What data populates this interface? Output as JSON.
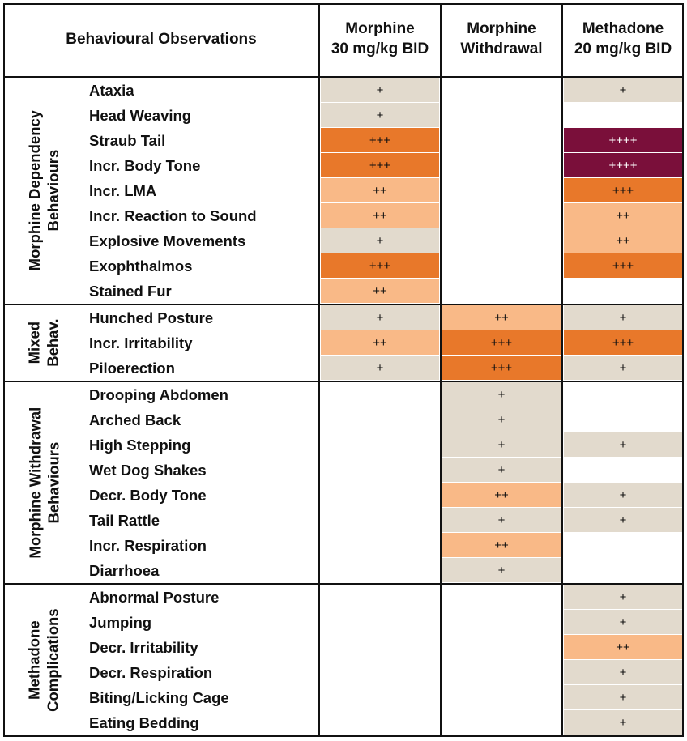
{
  "chart_data": {
    "type": "table",
    "corner_header": "Behavioural Observations",
    "columns": [
      {
        "label": "Morphine\n30 mg/kg BID"
      },
      {
        "label": "Morphine\nWithdrawal"
      },
      {
        "label": "Methadone\n20 mg/kg BID"
      }
    ],
    "legend_colors": {
      "+": "#e2dacd",
      "++": "#f9b987",
      "+++": "#e8782a",
      "++++": "#7a0f3a"
    },
    "groups": [
      {
        "label": "Morphine Dependency\nBehaviours",
        "rows": [
          {
            "label": "Ataxia",
            "values": [
              "+",
              "",
              "+"
            ]
          },
          {
            "label": "Head Weaving",
            "values": [
              "+",
              "",
              ""
            ]
          },
          {
            "label": "Straub Tail",
            "values": [
              "+++",
              "",
              "++++"
            ]
          },
          {
            "label": "Incr. Body Tone",
            "values": [
              "+++",
              "",
              "++++"
            ]
          },
          {
            "label": "Incr. LMA",
            "values": [
              "++",
              "",
              "+++"
            ]
          },
          {
            "label": "Incr. Reaction to Sound",
            "values": [
              "++",
              "",
              "++"
            ]
          },
          {
            "label": "Explosive Movements",
            "values": [
              "+",
              "",
              "++"
            ]
          },
          {
            "label": "Exophthalmos",
            "values": [
              "+++",
              "",
              "+++"
            ]
          },
          {
            "label": "Stained Fur",
            "values": [
              "++",
              "",
              ""
            ]
          }
        ]
      },
      {
        "label": "Mixed\nBehav.",
        "rows": [
          {
            "label": "Hunched Posture",
            "values": [
              "+",
              "++",
              "+"
            ]
          },
          {
            "label": "Incr. Irritability",
            "values": [
              "++",
              "+++",
              "+++"
            ]
          },
          {
            "label": "Piloerection",
            "values": [
              "+",
              "+++",
              "+"
            ]
          }
        ]
      },
      {
        "label": "Morphine Withdrawal\nBehaviours",
        "rows": [
          {
            "label": "Drooping Abdomen",
            "values": [
              "",
              "+",
              ""
            ]
          },
          {
            "label": "Arched Back",
            "values": [
              "",
              "+",
              ""
            ]
          },
          {
            "label": "High Stepping",
            "values": [
              "",
              "+",
              "+"
            ]
          },
          {
            "label": "Wet Dog Shakes",
            "values": [
              "",
              "+",
              ""
            ]
          },
          {
            "label": "Decr. Body Tone",
            "values": [
              "",
              "++",
              "+"
            ]
          },
          {
            "label": "Tail Rattle",
            "values": [
              "",
              "+",
              "+"
            ]
          },
          {
            "label": "Incr. Respiration",
            "values": [
              "",
              "++",
              ""
            ]
          },
          {
            "label": "Diarrhoea",
            "values": [
              "",
              "+",
              ""
            ]
          }
        ]
      },
      {
        "label": "Methadone\nComplications",
        "rows": [
          {
            "label": "Abnormal Posture",
            "values": [
              "",
              "",
              "+"
            ]
          },
          {
            "label": "Jumping",
            "values": [
              "",
              "",
              "+"
            ]
          },
          {
            "label": "Decr. Irritability",
            "values": [
              "",
              "",
              "++"
            ]
          },
          {
            "label": "Decr. Respiration",
            "values": [
              "",
              "",
              "+"
            ]
          },
          {
            "label": "Biting/Licking Cage",
            "values": [
              "",
              "",
              "+"
            ]
          },
          {
            "label": "Eating Bedding",
            "values": [
              "",
              "",
              "+"
            ]
          }
        ]
      }
    ]
  }
}
